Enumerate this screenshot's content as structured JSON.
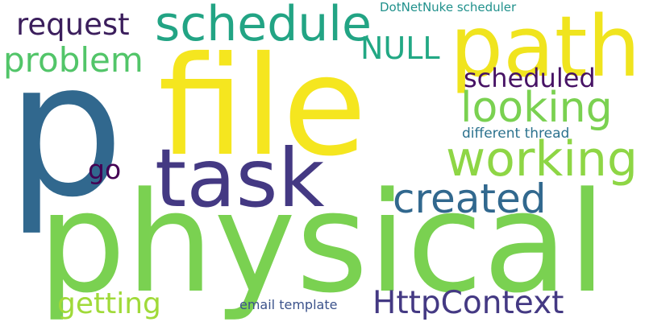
{
  "words": [
    {
      "text": "physical",
      "color": "#7ad151"
    },
    {
      "text": "p",
      "color": "#31688e"
    },
    {
      "text": "file",
      "color": "#f5e61f"
    },
    {
      "text": "task",
      "color": "#443983"
    },
    {
      "text": "path",
      "color": "#f0e41e"
    },
    {
      "text": "schedule",
      "color": "#22a484"
    },
    {
      "text": "working",
      "color": "#8ed645"
    },
    {
      "text": "looking",
      "color": "#7ad151"
    },
    {
      "text": "created",
      "color": "#31688e"
    },
    {
      "text": "problem",
      "color": "#52c569"
    },
    {
      "text": "request",
      "color": "#3b1e5c"
    },
    {
      "text": "scheduled",
      "color": "#471365"
    },
    {
      "text": "HttpContext",
      "color": "#443983"
    },
    {
      "text": "getting",
      "color": "#a0da39"
    },
    {
      "text": "NULL",
      "color": "#22a884"
    },
    {
      "text": "go",
      "color": "#440154"
    },
    {
      "text": "different thread",
      "color": "#2c728e"
    },
    {
      "text": "DotNetNuke scheduler",
      "color": "#21918c"
    },
    {
      "text": "email template",
      "color": "#3b528b"
    }
  ]
}
